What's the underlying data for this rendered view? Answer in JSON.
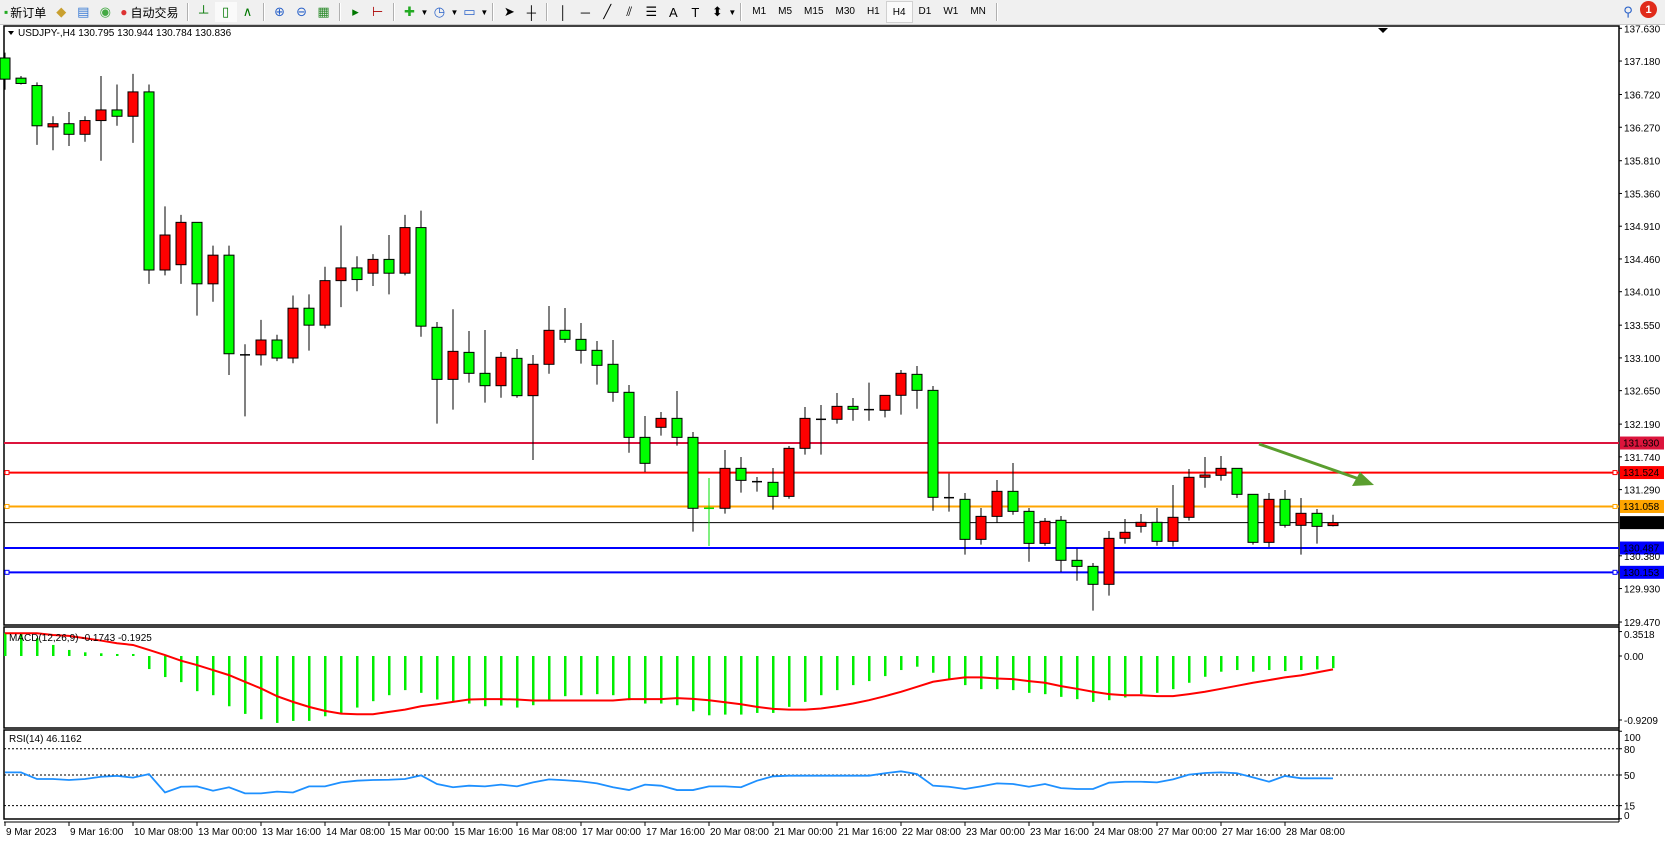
{
  "toolbar": {
    "new_order": "新订单",
    "auto_trading": "自动交易",
    "icons": [
      "new-order-icon",
      "strategy-tester-icon",
      "market-watch-icon",
      "signals-icon",
      "auto-trading-icon",
      "bar-chart-icon",
      "candlestick-icon",
      "line-chart-icon",
      "zoom-in-icon",
      "zoom-out-icon",
      "tile-windows-icon",
      "autoscroll-icon",
      "chart-shift-icon",
      "indicators-icon",
      "periods-icon",
      "templates-icon",
      "cursor-icon",
      "crosshair-icon",
      "vertical-line-icon",
      "horizontal-line-icon",
      "trendline-icon",
      "equidistant-channel-icon",
      "fibonacci-icon",
      "text-icon",
      "text-label-icon",
      "arrows-icon"
    ],
    "text_tool": "A",
    "timeframes": [
      "M1",
      "M5",
      "M15",
      "M30",
      "H1",
      "H4",
      "D1",
      "W1",
      "MN"
    ],
    "selected_timeframe": "H4",
    "notification_count": "1"
  },
  "chart": {
    "symbol_info": "USDJPY-,H4  130.795 130.944 130.784 130.836",
    "colors": {
      "up": "#ff0000",
      "down": "#00ff00",
      "arrow": "#5a9e2f"
    },
    "price_ticks": [
      "137.630",
      "137.180",
      "136.720",
      "136.270",
      "135.810",
      "135.360",
      "134.910",
      "134.460",
      "134.010",
      "133.550",
      "133.100",
      "132.650",
      "132.190",
      "131.740",
      "131.290",
      "130.380",
      "129.930",
      "129.470"
    ],
    "levels": [
      {
        "price": "131.930",
        "color": "#dc143c"
      },
      {
        "price": "131.524",
        "color": "#ff0000"
      },
      {
        "price": "131.058",
        "color": "#ffa500"
      },
      {
        "price": "130.836",
        "color": "#000000"
      },
      {
        "price": "130.487",
        "color": "#0000ff"
      },
      {
        "price": "130.153",
        "color": "#0000ff"
      }
    ],
    "time_labels": [
      "9 Mar 2023",
      "9 Mar 16:00",
      "10 Mar 08:00",
      "13 Mar 00:00",
      "13 Mar 16:00",
      "14 Mar 08:00",
      "15 Mar 00:00",
      "15 Mar 16:00",
      "16 Mar 08:00",
      "17 Mar 00:00",
      "17 Mar 16:00",
      "20 Mar 08:00",
      "21 Mar 00:00",
      "21 Mar 16:00",
      "22 Mar 08:00",
      "23 Mar 00:00",
      "23 Mar 16:00",
      "24 Mar 08:00",
      "27 Mar 00:00",
      "27 Mar 16:00",
      "28 Mar 08:00"
    ]
  },
  "chart_data": [
    {
      "type": "candlestick",
      "title": "USDJPY-,H4",
      "ohlc_fields": [
        "open",
        "high",
        "low",
        "close"
      ],
      "ylim": [
        129.47,
        137.63
      ],
      "candles": [
        [
          137.222,
          137.295,
          136.785,
          136.931
        ],
        [
          136.945,
          136.974,
          136.858,
          136.872
        ],
        [
          136.843,
          136.887,
          136.027,
          136.29
        ],
        [
          136.275,
          136.421,
          135.954,
          136.319
        ],
        [
          136.319,
          136.479,
          136.013,
          136.173
        ],
        [
          136.173,
          136.421,
          136.071,
          136.362
        ],
        [
          136.362,
          136.974,
          135.809,
          136.508
        ],
        [
          136.508,
          136.858,
          136.29,
          136.421
        ],
        [
          136.421,
          137.003,
          136.056,
          136.756
        ],
        [
          136.756,
          136.858,
          134.118,
          134.308
        ],
        [
          134.308,
          135.182,
          134.235,
          134.789
        ],
        [
          134.381,
          135.065,
          134.118,
          134.963
        ],
        [
          134.963,
          134.963,
          133.681,
          134.118
        ],
        [
          134.118,
          134.643,
          133.871,
          134.512
        ],
        [
          134.512,
          134.643,
          132.865,
          133.157
        ],
        [
          133.142,
          133.288,
          132.297,
          133.15
        ],
        [
          133.142,
          133.623,
          132.996,
          133.346
        ],
        [
          133.346,
          133.419,
          133.055,
          133.098
        ],
        [
          133.098,
          133.958,
          133.026,
          133.783
        ],
        [
          133.783,
          133.973,
          133.2,
          133.55
        ],
        [
          133.55,
          134.352,
          133.506,
          134.162
        ],
        [
          134.162,
          134.92,
          133.798,
          134.337
        ],
        [
          134.337,
          134.497,
          134.016,
          134.177
        ],
        [
          134.264,
          134.526,
          134.089,
          134.454
        ],
        [
          134.454,
          134.789,
          133.973,
          134.264
        ],
        [
          134.264,
          135.065,
          134.235,
          134.891
        ],
        [
          134.891,
          135.124,
          133.39,
          133.536
        ],
        [
          133.52,
          133.594,
          132.196,
          132.805
        ],
        [
          132.805,
          133.768,
          132.389,
          133.19
        ],
        [
          133.176,
          133.47,
          132.76,
          132.888
        ],
        [
          132.888,
          133.484,
          132.485,
          132.718
        ],
        [
          132.718,
          133.181,
          132.553,
          133.108
        ],
        [
          133.094,
          133.222,
          132.553,
          132.581
        ],
        [
          132.581,
          133.14,
          131.697,
          133.012
        ],
        [
          133.012,
          133.813,
          132.883,
          133.479
        ],
        [
          133.479,
          133.786,
          133.309,
          133.355
        ],
        [
          133.355,
          133.58,
          133.021,
          133.204
        ],
        [
          133.204,
          133.332,
          132.732,
          132.998
        ],
        [
          133.012,
          133.346,
          132.498,
          132.627
        ],
        [
          132.627,
          132.727,
          131.797,
          132.008
        ],
        [
          132.008,
          132.302,
          131.532,
          131.651
        ],
        [
          132.146,
          132.357,
          132.031,
          132.269
        ],
        [
          132.269,
          132.645,
          131.894,
          132.008
        ],
        [
          132.008,
          132.082,
          130.712,
          131.033
        ],
        [
          131.033,
          131.449,
          130.515,
          131.04
        ],
        [
          131.033,
          131.834,
          130.959,
          131.582
        ],
        [
          131.582,
          131.738,
          131.248,
          131.417
        ],
        [
          131.399,
          131.463,
          131.262,
          131.4
        ],
        [
          131.39,
          131.587,
          131.014,
          131.197
        ],
        [
          131.197,
          131.889,
          131.165,
          131.857
        ],
        [
          131.857,
          132.425,
          131.77,
          132.269
        ],
        [
          132.256,
          132.453,
          131.77,
          132.256
        ],
        [
          132.256,
          132.618,
          132.196,
          132.434
        ],
        [
          132.434,
          132.549,
          132.237,
          132.393
        ],
        [
          132.389,
          132.76,
          132.237,
          132.389
        ],
        [
          132.38,
          132.585,
          132.283,
          132.585
        ],
        [
          132.586,
          132.934,
          132.32,
          132.888
        ],
        [
          132.874,
          132.989,
          132.402,
          132.654
        ],
        [
          132.654,
          132.714,
          131.0,
          131.184
        ],
        [
          131.179,
          131.509,
          130.987,
          131.18
        ],
        [
          131.156,
          131.243,
          130.396,
          130.606
        ],
        [
          130.606,
          131.037,
          130.533,
          130.922
        ],
        [
          130.922,
          131.422,
          130.831,
          131.266
        ],
        [
          131.266,
          131.656,
          130.945,
          130.991
        ],
        [
          130.991,
          131.037,
          130.299,
          130.551
        ],
        [
          130.551,
          130.9,
          130.519,
          130.854
        ],
        [
          130.868,
          130.927,
          130.157,
          130.318
        ],
        [
          130.318,
          130.478,
          130.038,
          130.235
        ],
        [
          130.235,
          130.281,
          129.626,
          129.988
        ],
        [
          129.988,
          130.721,
          129.832,
          130.62
        ],
        [
          130.62,
          130.886,
          130.547,
          130.703
        ],
        [
          130.785,
          130.955,
          130.698,
          130.84
        ],
        [
          130.84,
          131.037,
          130.519,
          130.579
        ],
        [
          130.579,
          131.353,
          130.506,
          130.909
        ],
        [
          130.909,
          131.573,
          130.863,
          131.459
        ],
        [
          131.459,
          131.738,
          131.316,
          131.491
        ],
        [
          131.486,
          131.752,
          131.413,
          131.582
        ],
        [
          131.582,
          131.582,
          131.174,
          131.225
        ],
        [
          131.225,
          131.225,
          130.533,
          130.565
        ],
        [
          130.565,
          131.243,
          130.501,
          131.156
        ],
        [
          131.156,
          131.284,
          130.767,
          130.799
        ],
        [
          130.799,
          131.174,
          130.396,
          130.964
        ],
        [
          130.964,
          131.023,
          130.547,
          130.785
        ],
        [
          130.795,
          130.944,
          130.784,
          130.836
        ]
      ]
    },
    {
      "type": "bar",
      "title": "MACD(12,26,9) -0.1743 -0.1925",
      "ylim": [
        -0.9209,
        0.3518
      ],
      "ticks": [
        "0.3518",
        "0.00",
        "-0.9209"
      ],
      "histogram": [
        0.328,
        0.328,
        0.255,
        0.159,
        0.087,
        0.053,
        0.039,
        0.029,
        0.029,
        -0.188,
        -0.303,
        -0.376,
        -0.506,
        -0.564,
        -0.723,
        -0.833,
        -0.91,
        -0.963,
        -0.934,
        -0.934,
        -0.867,
        -0.833,
        -0.742,
        -0.65,
        -0.564,
        -0.491,
        -0.53,
        -0.626,
        -0.665,
        -0.684,
        -0.723,
        -0.713,
        -0.742,
        -0.708,
        -0.636,
        -0.578,
        -0.564,
        -0.549,
        -0.564,
        -0.636,
        -0.684,
        -0.684,
        -0.708,
        -0.795,
        -0.853,
        -0.843,
        -0.843,
        -0.819,
        -0.819,
        -0.732,
        -0.66,
        -0.564,
        -0.491,
        -0.419,
        -0.361,
        -0.289,
        -0.202,
        -0.154,
        -0.241,
        -0.337,
        -0.419,
        -0.477,
        -0.477,
        -0.491,
        -0.53,
        -0.549,
        -0.588,
        -0.621,
        -0.66,
        -0.636,
        -0.597,
        -0.549,
        -0.53,
        -0.477,
        -0.385,
        -0.299,
        -0.226,
        -0.202,
        -0.226,
        -0.202,
        -0.217,
        -0.202,
        -0.193,
        -0.1743
      ],
      "signal": [
        0.328,
        0.328,
        0.328,
        0.303,
        0.289,
        0.255,
        0.222,
        0.183,
        0.159,
        0.087,
        0.014,
        -0.067,
        -0.13,
        -0.202,
        -0.275,
        -0.371,
        -0.467,
        -0.578,
        -0.66,
        -0.732,
        -0.79,
        -0.829,
        -0.838,
        -0.838,
        -0.804,
        -0.771,
        -0.723,
        -0.694,
        -0.66,
        -0.626,
        -0.621,
        -0.621,
        -0.626,
        -0.641,
        -0.641,
        -0.641,
        -0.641,
        -0.641,
        -0.641,
        -0.621,
        -0.621,
        -0.621,
        -0.607,
        -0.617,
        -0.636,
        -0.665,
        -0.694,
        -0.732,
        -0.761,
        -0.771,
        -0.771,
        -0.756,
        -0.723,
        -0.684,
        -0.636,
        -0.578,
        -0.515,
        -0.443,
        -0.371,
        -0.337,
        -0.308,
        -0.308,
        -0.323,
        -0.332,
        -0.361,
        -0.385,
        -0.434,
        -0.472,
        -0.515,
        -0.549,
        -0.564,
        -0.564,
        -0.578,
        -0.578,
        -0.549,
        -0.515,
        -0.472,
        -0.429,
        -0.385,
        -0.347,
        -0.308,
        -0.279,
        -0.236,
        -0.1925
      ]
    },
    {
      "type": "line",
      "title": "RSI(14) 46.1162",
      "ylim": [
        0,
        100
      ],
      "ticks": [
        "100",
        "80",
        "50",
        "15",
        "0"
      ],
      "levels": [
        80,
        50,
        15
      ],
      "values": [
        53,
        53,
        45.4,
        45.4,
        44.3,
        45.4,
        48,
        49,
        47,
        51,
        30,
        36.6,
        37,
        32,
        36,
        29,
        29,
        31,
        30,
        37,
        37,
        41.6,
        43.5,
        44.3,
        44.6,
        45.4,
        49.6,
        39.7,
        36,
        37.8,
        37,
        39,
        37,
        41.6,
        45,
        44,
        42.7,
        40.4,
        36,
        32.8,
        39,
        37.8,
        32.8,
        32.8,
        37,
        37,
        36,
        43.5,
        48.5,
        49.2,
        49.2,
        49.2,
        49.2,
        49.2,
        49.2,
        52,
        54.2,
        51,
        37.8,
        36.6,
        34,
        37,
        40.4,
        39.7,
        36.6,
        39.7,
        35,
        34,
        34,
        41.2,
        42.3,
        42.3,
        41.6,
        45,
        50.4,
        52.3,
        53,
        52,
        47.3,
        42.3,
        48.9,
        46.2,
        46.2,
        46.1162
      ]
    }
  ]
}
